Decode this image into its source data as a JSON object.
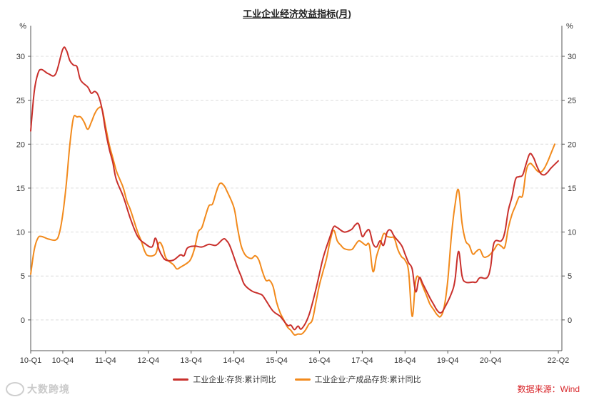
{
  "chart_data": {
    "type": "line",
    "title": "工业企业经济效益指标(月)",
    "y_unit_left": "%",
    "y_unit_right": "%",
    "ylim": [
      -3.5,
      33
    ],
    "yticks": [
      0,
      5,
      10,
      15,
      20,
      25,
      30
    ],
    "xlim": [
      0,
      149
    ],
    "x_tick_positions": [
      0,
      9,
      21,
      33,
      45,
      57,
      69,
      81,
      93,
      105,
      117,
      129,
      148
    ],
    "x_tick_labels": [
      "10-Q1",
      "10-Q4",
      "11-Q4",
      "12-Q4",
      "13-Q4",
      "14-Q4",
      "15-Q4",
      "16-Q4",
      "17-Q4",
      "18-Q4",
      "19-Q4",
      "20-Q4",
      "22-Q2"
    ],
    "grid": "horizontal dashed",
    "legend_position": "bottom",
    "series": [
      {
        "name": "工业企业:存货:累计同比",
        "color": "#c9302c",
        "points": [
          [
            0,
            21.5
          ],
          [
            1,
            26
          ],
          [
            2,
            28
          ],
          [
            3,
            28.5
          ],
          [
            5,
            28
          ],
          [
            7,
            28
          ],
          [
            9,
            30.8
          ],
          [
            10,
            30.7
          ],
          [
            11,
            29.5
          ],
          [
            12,
            29
          ],
          [
            13,
            28.8
          ],
          [
            14,
            27.3
          ],
          [
            16,
            26.5
          ],
          [
            17,
            25.8
          ],
          [
            18,
            26
          ],
          [
            19,
            25.5
          ],
          [
            20,
            24
          ],
          [
            21,
            21.5
          ],
          [
            22,
            19.5
          ],
          [
            23,
            18
          ],
          [
            24,
            16
          ],
          [
            26,
            14
          ],
          [
            28,
            11.5
          ],
          [
            30,
            9.5
          ],
          [
            32,
            8.7
          ],
          [
            34,
            8.3
          ],
          [
            35,
            9.3
          ],
          [
            36,
            8
          ],
          [
            37,
            7.2
          ],
          [
            38,
            6.8
          ],
          [
            40,
            6.8
          ],
          [
            42,
            7.4
          ],
          [
            43,
            7.3
          ],
          [
            44,
            8.2
          ],
          [
            46,
            8.4
          ],
          [
            48,
            8.3
          ],
          [
            50,
            8.6
          ],
          [
            52,
            8.5
          ],
          [
            54,
            9.2
          ],
          [
            55,
            9
          ],
          [
            56,
            8.3
          ],
          [
            58,
            6
          ],
          [
            59,
            5
          ],
          [
            60,
            4
          ],
          [
            62,
            3.3
          ],
          [
            64,
            3
          ],
          [
            65,
            2.8
          ],
          [
            66,
            2.2
          ],
          [
            68,
            1
          ],
          [
            70,
            0.4
          ],
          [
            72,
            -0.6
          ],
          [
            73,
            -0.6
          ],
          [
            74,
            -1.1
          ],
          [
            75,
            -0.7
          ],
          [
            76,
            -1
          ],
          [
            78,
            0.5
          ],
          [
            80,
            3.5
          ],
          [
            82,
            7
          ],
          [
            84,
            9.5
          ],
          [
            85,
            10.6
          ],
          [
            86,
            10.5
          ],
          [
            88,
            10
          ],
          [
            90,
            10.3
          ],
          [
            91,
            10.8
          ],
          [
            92,
            10.9
          ],
          [
            93,
            9.5
          ],
          [
            94,
            10
          ],
          [
            95,
            10.2
          ],
          [
            96,
            8.7
          ],
          [
            97,
            8.3
          ],
          [
            98,
            9
          ],
          [
            99,
            8.5
          ],
          [
            100,
            10
          ],
          [
            101,
            10.2
          ],
          [
            102,
            9.5
          ],
          [
            104,
            8.5
          ],
          [
            105,
            7.5
          ],
          [
            106,
            6.5
          ],
          [
            107,
            5.8
          ],
          [
            108,
            3.2
          ],
          [
            109,
            4.8
          ],
          [
            110,
            4.1
          ],
          [
            112,
            2.5
          ],
          [
            113,
            1.8
          ],
          [
            114,
            1.1
          ],
          [
            115,
            0.8
          ],
          [
            116,
            1.3
          ],
          [
            118,
            3
          ],
          [
            119,
            4.5
          ],
          [
            120,
            7.8
          ],
          [
            121,
            5
          ],
          [
            122,
            4.3
          ],
          [
            124,
            4.3
          ],
          [
            125,
            4.3
          ],
          [
            126,
            4.8
          ],
          [
            128,
            4.8
          ],
          [
            129,
            6
          ],
          [
            130,
            8.8
          ],
          [
            132,
            9
          ],
          [
            133,
            10
          ],
          [
            134,
            12.5
          ],
          [
            135,
            14
          ],
          [
            136,
            16
          ],
          [
            137,
            16.3
          ],
          [
            138,
            16.5
          ],
          [
            139,
            17.8
          ],
          [
            140,
            18.9
          ],
          [
            141,
            18.5
          ],
          [
            142,
            17.5
          ],
          [
            143,
            16.7
          ],
          [
            144,
            16.5
          ],
          [
            145,
            16.8
          ],
          [
            146,
            17.3
          ],
          [
            148,
            18.1
          ]
        ]
      },
      {
        "name": "工业企业:产成品存货:累计同比",
        "color": "#f28a1c",
        "points": [
          [
            0,
            5.2
          ],
          [
            1,
            8
          ],
          [
            2,
            9.3
          ],
          [
            3,
            9.5
          ],
          [
            5,
            9.2
          ],
          [
            7,
            9.1
          ],
          [
            8,
            9.8
          ],
          [
            9,
            12
          ],
          [
            10,
            15.5
          ],
          [
            11,
            20
          ],
          [
            12,
            23
          ],
          [
            13,
            23.1
          ],
          [
            14,
            23.1
          ],
          [
            15,
            22.5
          ],
          [
            16,
            21.7
          ],
          [
            17,
            22.5
          ],
          [
            18,
            23.5
          ],
          [
            19,
            24.1
          ],
          [
            20,
            24
          ],
          [
            21,
            22
          ],
          [
            22,
            20
          ],
          [
            23,
            18.5
          ],
          [
            24,
            17
          ],
          [
            25,
            16
          ],
          [
            26,
            15
          ],
          [
            27,
            13.5
          ],
          [
            28,
            12.5
          ],
          [
            30,
            10
          ],
          [
            31,
            9
          ],
          [
            32,
            7.8
          ],
          [
            33,
            7.3
          ],
          [
            35,
            7.5
          ],
          [
            36,
            8.8
          ],
          [
            37,
            8.3
          ],
          [
            38,
            7
          ],
          [
            40,
            6.3
          ],
          [
            41,
            5.8
          ],
          [
            42,
            6
          ],
          [
            44,
            6.5
          ],
          [
            45,
            7
          ],
          [
            46,
            8.2
          ],
          [
            47,
            10
          ],
          [
            48,
            10.5
          ],
          [
            49,
            11.8
          ],
          [
            50,
            13
          ],
          [
            51,
            13.2
          ],
          [
            52,
            14.5
          ],
          [
            53,
            15.5
          ],
          [
            54,
            15.4
          ],
          [
            55,
            14.7
          ],
          [
            57,
            12.8
          ],
          [
            58,
            10.5
          ],
          [
            59,
            8.5
          ],
          [
            60,
            7.5
          ],
          [
            61,
            7.1
          ],
          [
            62,
            7
          ],
          [
            63,
            7.3
          ],
          [
            64,
            6.8
          ],
          [
            65,
            5.5
          ],
          [
            66,
            4.5
          ],
          [
            67,
            4.5
          ],
          [
            68,
            3.8
          ],
          [
            69,
            2
          ],
          [
            70,
            0.8
          ],
          [
            71,
            0
          ],
          [
            72,
            -0.8
          ],
          [
            73,
            -1.2
          ],
          [
            74,
            -1.7
          ],
          [
            75,
            -1.6
          ],
          [
            76,
            -1.6
          ],
          [
            77,
            -1.2
          ],
          [
            78,
            -0.5
          ],
          [
            79,
            0
          ],
          [
            80,
            2
          ],
          [
            81,
            4
          ],
          [
            82,
            5.5
          ],
          [
            83,
            7
          ],
          [
            84,
            9
          ],
          [
            85,
            10.2
          ],
          [
            86,
            9
          ],
          [
            87,
            8.5
          ],
          [
            88,
            8.1
          ],
          [
            90,
            8
          ],
          [
            91,
            8.5
          ],
          [
            92,
            9
          ],
          [
            93,
            8.8
          ],
          [
            94,
            8.5
          ],
          [
            95,
            8.5
          ],
          [
            96,
            5.5
          ],
          [
            97,
            7.2
          ],
          [
            98,
            8.5
          ],
          [
            99,
            9.8
          ],
          [
            100,
            9.5
          ],
          [
            101,
            9.4
          ],
          [
            102,
            9.3
          ],
          [
            103,
            8
          ],
          [
            104,
            7.2
          ],
          [
            105,
            6.8
          ],
          [
            106,
            5.5
          ],
          [
            107,
            0.4
          ],
          [
            108,
            4.5
          ],
          [
            109,
            4.8
          ],
          [
            110,
            3.8
          ],
          [
            111,
            2.8
          ],
          [
            112,
            1.8
          ],
          [
            113,
            1.2
          ],
          [
            114,
            0.6
          ],
          [
            115,
            0.4
          ],
          [
            116,
            1.5
          ],
          [
            117,
            4.5
          ],
          [
            118,
            9.5
          ],
          [
            119,
            13
          ],
          [
            120,
            14.8
          ],
          [
            121,
            11
          ],
          [
            122,
            9
          ],
          [
            123,
            8.5
          ],
          [
            124,
            7.5
          ],
          [
            125,
            7.8
          ],
          [
            126,
            8
          ],
          [
            127,
            7.2
          ],
          [
            128,
            7.2
          ],
          [
            129,
            7.5
          ],
          [
            130,
            8
          ],
          [
            131,
            8.6
          ],
          [
            132,
            8.4
          ],
          [
            133,
            8.3
          ],
          [
            134,
            10.5
          ],
          [
            135,
            12
          ],
          [
            136,
            13
          ],
          [
            137,
            14
          ],
          [
            138,
            14.2
          ],
          [
            139,
            17
          ],
          [
            140,
            17.8
          ],
          [
            141,
            17.5
          ],
          [
            142,
            17
          ],
          [
            143,
            16.8
          ],
          [
            144,
            17.2
          ],
          [
            145,
            18
          ],
          [
            146,
            19
          ],
          [
            147,
            20
          ]
        ]
      }
    ]
  },
  "legend": {
    "items": [
      {
        "label": "工业企业:存货:累计同比",
        "color": "#c9302c"
      },
      {
        "label": "工业企业:产成品存货:累计同比",
        "color": "#f28a1c"
      }
    ]
  },
  "source": "数据来源：Wind",
  "watermark": "大数跨境"
}
